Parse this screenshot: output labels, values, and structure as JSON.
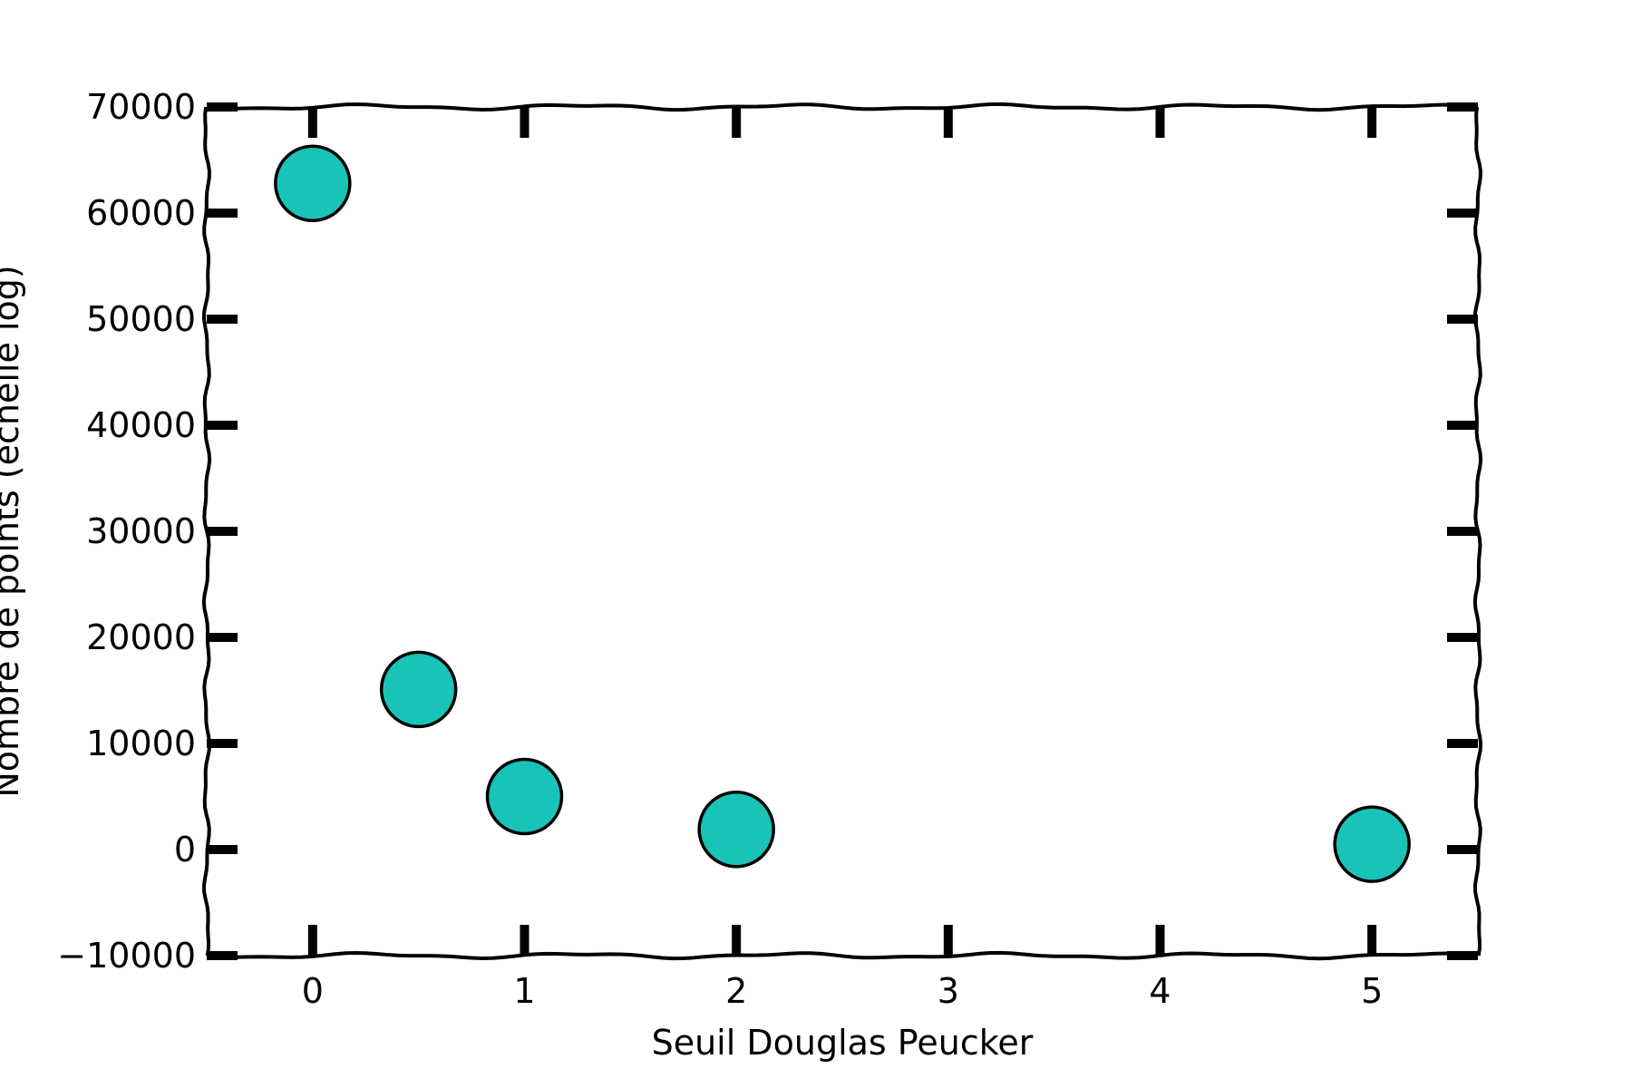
{
  "chart_data": {
    "type": "scatter",
    "title": "",
    "xlabel": "Seuil Douglas Peucker",
    "ylabel": "Nombre de points (échelle log)",
    "xlim": [
      -0.5,
      5.5
    ],
    "ylim": [
      -10000,
      70000
    ],
    "x_ticks": [
      0,
      1,
      2,
      3,
      4,
      5
    ],
    "x_tick_labels": [
      "0",
      "1",
      "2",
      "3",
      "4",
      "5"
    ],
    "y_ticks": [
      -10000,
      0,
      10000,
      20000,
      30000,
      40000,
      50000,
      60000,
      70000
    ],
    "y_tick_labels": [
      "−10000",
      "0",
      "10000",
      "20000",
      "30000",
      "40000",
      "50000",
      "60000",
      "70000"
    ],
    "grid": false,
    "legend": "none",
    "marker_color": "#19c3b8",
    "marker_edge_color": "#000000",
    "series": [
      {
        "x": [
          0,
          0.5,
          1,
          2,
          5
        ],
        "y": [
          62800,
          15100,
          5000,
          1900,
          500
        ]
      }
    ]
  }
}
